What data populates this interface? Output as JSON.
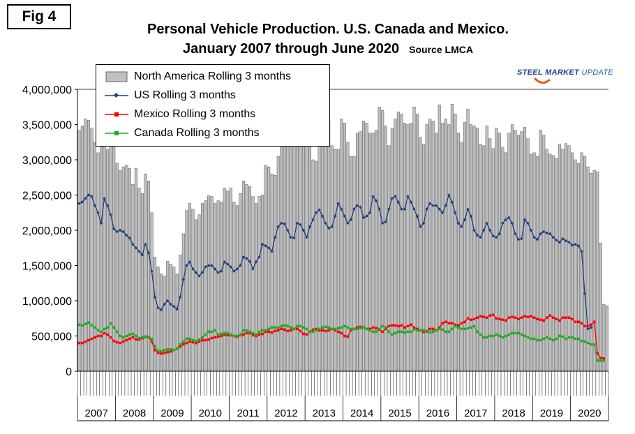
{
  "figure_label": "Fig 4",
  "title_line1": "Personal Vehicle Production. U.S. Canada and Mexico.",
  "title_line2": "January 2007 through June 2020",
  "source": "Source LMCA",
  "watermark": {
    "brand": "STEEL MARKET",
    "suffix": "UPDATE"
  },
  "colors": {
    "na_fill": "#c0c0c0",
    "us": "#1f3f7f",
    "mexico": "#ff0000",
    "canada": "#22aa22"
  },
  "chart_data": {
    "type": "bar",
    "title": "Personal Vehicle Production. U.S. Canada and Mexico. January 2007 through June 2020",
    "ylim": [
      0,
      4000000
    ],
    "yticks": [
      "0",
      "500,000",
      "1,000,000",
      "1,500,000",
      "2,000,000",
      "2,500,000",
      "3,000,000",
      "3,500,000",
      "4,000,000"
    ],
    "year_labels": [
      "2007",
      "2008",
      "2009",
      "2010",
      "2011",
      "2012",
      "2013",
      "2014",
      "2015",
      "2016",
      "2017",
      "2018",
      "2019",
      "2020"
    ],
    "x_start": "2007-01",
    "x_end": "2020-06",
    "grid": false,
    "legend": "top-left",
    "series": [
      {
        "name": "North America Rolling 3 months",
        "kind": "bar",
        "values": [
          3420000,
          3480000,
          3580000,
          3560000,
          3450000,
          3250000,
          3100000,
          3450000,
          3420000,
          3150000,
          3350000,
          3250000,
          2950000,
          2850000,
          2900000,
          2920000,
          2880000,
          2650000,
          2880000,
          2600000,
          2520000,
          2800000,
          2700000,
          2250000,
          1620000,
          1480000,
          1380000,
          1350000,
          1560000,
          1520000,
          1480000,
          1380000,
          1650000,
          1950000,
          2280000,
          2380000,
          2300000,
          2150000,
          2220000,
          2380000,
          2420000,
          2490000,
          2480000,
          2380000,
          2420000,
          2400000,
          2600000,
          2560000,
          2600000,
          2400000,
          2350000,
          2520000,
          2700000,
          2650000,
          2620000,
          2480000,
          2380000,
          2480000,
          2500000,
          2920000,
          2900000,
          2800000,
          2780000,
          3050000,
          3380000,
          3350000,
          3250000,
          3250000,
          3400000,
          3580000,
          3400000,
          3300000,
          3350000,
          3200000,
          3000000,
          2980000,
          3250000,
          3380000,
          3580000,
          3580000,
          3200000,
          3150000,
          3150000,
          3580000,
          3520000,
          3250000,
          3050000,
          3050000,
          3380000,
          3400000,
          3550000,
          3520000,
          3380000,
          3380000,
          3420000,
          3750000,
          3700000,
          3480000,
          3200000,
          3450000,
          3580000,
          3680000,
          3650000,
          3520000,
          3500000,
          3520000,
          3750000,
          3650000,
          3320000,
          3220000,
          3500000,
          3580000,
          3550000,
          3380000,
          3780000,
          3520000,
          3580000,
          3500000,
          3790000,
          3650000,
          3380000,
          3250000,
          3530000,
          3720000,
          3500000,
          3480000,
          3450000,
          3220000,
          3200000,
          3480000,
          3300000,
          3160000,
          3450000,
          3380000,
          3180000,
          3100000,
          3380000,
          3500000,
          3420000,
          3350000,
          3400000,
          3460000,
          3300000,
          3080000,
          3100000,
          3050000,
          3420000,
          3350000,
          3150000,
          3080000,
          3060000,
          3020000,
          3220000,
          3150000,
          3230000,
          3200000,
          3100000,
          3000000,
          2950000,
          3100000,
          3050000,
          2900000,
          2810000,
          2850000,
          2830000,
          1820000,
          950000,
          930000
        ]
      },
      {
        "name": "US Rolling 3 months",
        "kind": "line",
        "values": [
          2380000,
          2400000,
          2450000,
          2500000,
          2480000,
          2350000,
          2250000,
          2100000,
          2450000,
          2350000,
          2220000,
          2020000,
          1980000,
          2000000,
          1980000,
          1930000,
          1890000,
          1800000,
          1750000,
          1700000,
          1650000,
          1800000,
          1680000,
          1420000,
          1050000,
          900000,
          870000,
          950000,
          1000000,
          950000,
          920000,
          880000,
          1050000,
          1300000,
          1500000,
          1550000,
          1450000,
          1400000,
          1350000,
          1400000,
          1480000,
          1500000,
          1500000,
          1450000,
          1400000,
          1420000,
          1550000,
          1520000,
          1480000,
          1420000,
          1450000,
          1500000,
          1620000,
          1600000,
          1560000,
          1450000,
          1550000,
          1620000,
          1800000,
          1780000,
          1750000,
          1700000,
          1900000,
          2050000,
          2100000,
          2090000,
          2000000,
          1900000,
          1890000,
          2100000,
          2080000,
          2000000,
          1900000,
          2050000,
          2150000,
          2250000,
          2290000,
          2200000,
          2100000,
          2030000,
          2050000,
          2200000,
          2380000,
          2300000,
          2200000,
          2100000,
          2150000,
          2300000,
          2350000,
          2330000,
          2180000,
          2200000,
          2250000,
          2480000,
          2420000,
          2300000,
          2100000,
          2120000,
          2300000,
          2450000,
          2480000,
          2400000,
          2300000,
          2300000,
          2480000,
          2400000,
          2300000,
          2200000,
          2050000,
          2100000,
          2300000,
          2380000,
          2350000,
          2350000,
          2300000,
          2250000,
          2350000,
          2500000,
          2400000,
          2250000,
          2100000,
          2050000,
          2150000,
          2300000,
          2200000,
          2000000,
          1930000,
          1900000,
          2000000,
          2100000,
          2000000,
          1920000,
          1900000,
          1950000,
          2100000,
          2150000,
          2180000,
          2100000,
          1950000,
          1870000,
          1880000,
          2150000,
          2100000,
          2000000,
          1900000,
          1870000,
          1950000,
          1980000,
          1960000,
          1950000,
          1900000,
          1860000,
          1830000,
          1880000,
          1850000,
          1830000,
          1790000,
          1800000,
          1780000,
          1700000,
          1100000,
          600000,
          620000
        ]
      },
      {
        "name": "Mexico Rolling 3 months",
        "kind": "line",
        "values": [
          400000,
          400000,
          420000,
          440000,
          460000,
          480000,
          500000,
          500000,
          540000,
          520000,
          480000,
          430000,
          410000,
          400000,
          420000,
          440000,
          460000,
          480000,
          450000,
          450000,
          470000,
          490000,
          480000,
          420000,
          300000,
          260000,
          250000,
          260000,
          270000,
          280000,
          300000,
          320000,
          350000,
          380000,
          400000,
          420000,
          410000,
          400000,
          420000,
          440000,
          440000,
          450000,
          470000,
          480000,
          490000,
          500000,
          520000,
          510000,
          510000,
          500000,
          490000,
          510000,
          520000,
          540000,
          540000,
          510000,
          500000,
          520000,
          530000,
          560000,
          560000,
          550000,
          570000,
          580000,
          600000,
          590000,
          570000,
          580000,
          600000,
          600000,
          570000,
          530000,
          520000,
          560000,
          590000,
          600000,
          580000,
          580000,
          570000,
          580000,
          600000,
          580000,
          560000,
          540000,
          500000,
          490000,
          580000,
          600000,
          620000,
          630000,
          620000,
          600000,
          600000,
          620000,
          610000,
          590000,
          560000,
          600000,
          640000,
          650000,
          650000,
          640000,
          650000,
          620000,
          640000,
          660000,
          620000,
          600000,
          580000,
          560000,
          570000,
          600000,
          600000,
          580000,
          620000,
          680000,
          700000,
          680000,
          680000,
          660000,
          650000,
          680000,
          700000,
          750000,
          730000,
          740000,
          760000,
          780000,
          770000,
          760000,
          790000,
          800000,
          750000,
          740000,
          730000,
          720000,
          760000,
          770000,
          760000,
          740000,
          760000,
          780000,
          770000,
          780000,
          760000,
          740000,
          730000,
          720000,
          760000,
          790000,
          760000,
          740000,
          720000,
          760000,
          760000,
          760000,
          740000,
          700000,
          700000,
          680000,
          640000,
          640000,
          660000,
          700000,
          250000,
          190000,
          180000
        ]
      },
      {
        "name": "Canada Rolling 3 months",
        "kind": "line",
        "values": [
          660000,
          650000,
          670000,
          690000,
          650000,
          620000,
          580000,
          560000,
          600000,
          620000,
          680000,
          620000,
          560000,
          500000,
          480000,
          500000,
          520000,
          530000,
          500000,
          470000,
          480000,
          480000,
          480000,
          460000,
          350000,
          290000,
          280000,
          300000,
          310000,
          310000,
          300000,
          320000,
          380000,
          420000,
          460000,
          460000,
          440000,
          430000,
          450000,
          480000,
          520000,
          560000,
          560000,
          580000,
          520000,
          530000,
          540000,
          540000,
          520000,
          500000,
          500000,
          520000,
          580000,
          580000,
          560000,
          540000,
          520000,
          560000,
          580000,
          580000,
          600000,
          620000,
          620000,
          620000,
          640000,
          650000,
          640000,
          620000,
          600000,
          640000,
          640000,
          620000,
          600000,
          560000,
          560000,
          580000,
          600000,
          620000,
          630000,
          620000,
          600000,
          600000,
          610000,
          620000,
          640000,
          620000,
          600000,
          600000,
          600000,
          610000,
          620000,
          600000,
          580000,
          560000,
          560000,
          600000,
          640000,
          620000,
          560000,
          520000,
          540000,
          560000,
          560000,
          550000,
          560000,
          560000,
          590000,
          580000,
          580000,
          580000,
          560000,
          550000,
          560000,
          580000,
          600000,
          590000,
          560000,
          560000,
          600000,
          640000,
          620000,
          600000,
          600000,
          610000,
          620000,
          640000,
          560000,
          520000,
          480000,
          480000,
          500000,
          500000,
          520000,
          500000,
          480000,
          500000,
          520000,
          540000,
          540000,
          540000,
          520000,
          500000,
          480000,
          460000,
          460000,
          440000,
          440000,
          460000,
          480000,
          460000,
          440000,
          460000,
          500000,
          490000,
          460000,
          480000,
          480000,
          460000,
          460000,
          430000,
          420000,
          400000,
          380000,
          380000,
          150000,
          150000,
          150000
        ]
      }
    ]
  }
}
